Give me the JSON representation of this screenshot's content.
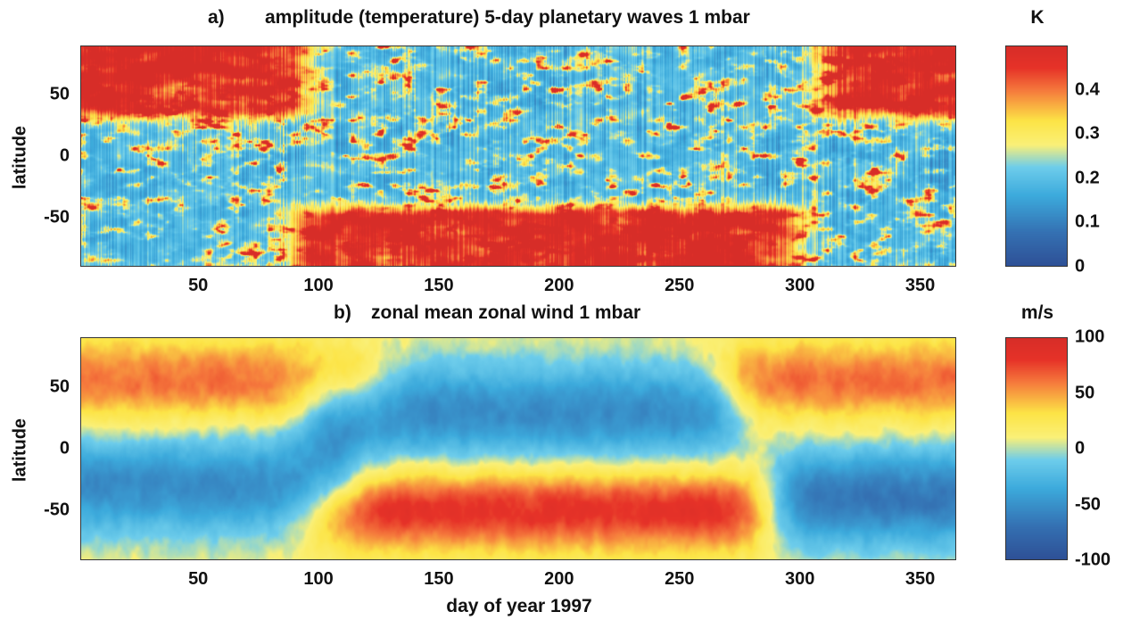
{
  "chart_data": [
    {
      "type": "heatmap",
      "label": "a)",
      "title": "amplitude (temperature) 5-day planetary waves  1 mbar",
      "ylabel": "latitude",
      "xlabel": "",
      "xlim": [
        1,
        365
      ],
      "ylim": [
        -90,
        90
      ],
      "xticks": [
        50,
        100,
        150,
        200,
        250,
        300,
        350
      ],
      "yticks": [
        50,
        0,
        -50
      ],
      "colorbar": {
        "unit": "K",
        "range": [
          0,
          0.5
        ],
        "ticks": [
          "0.4",
          "0.3",
          "0.2",
          "0.1",
          "0"
        ],
        "tick_values": [
          0.4,
          0.3,
          0.2,
          0.1,
          0
        ]
      },
      "regions_high_amplitude": [
        {
          "day_range": [
            5,
            85
          ],
          "lat_range": [
            40,
            90
          ],
          "value": 0.45
        },
        {
          "day_range": [
            320,
            365
          ],
          "lat_range": [
            40,
            90
          ],
          "value": 0.45
        },
        {
          "day_range": [
            100,
            290
          ],
          "lat_range": [
            -90,
            -50
          ],
          "value": 0.45
        }
      ]
    },
    {
      "type": "heatmap",
      "label": "b)",
      "title": "zonal mean zonal wind   1 mbar",
      "ylabel": "latitude",
      "xlabel": "day of year 1997",
      "xlim": [
        1,
        365
      ],
      "ylim": [
        -90,
        90
      ],
      "xticks": [
        50,
        100,
        150,
        200,
        250,
        300,
        350
      ],
      "yticks": [
        50,
        0,
        -50
      ],
      "colorbar": {
        "unit": "m/s",
        "range": [
          -100,
          100
        ],
        "ticks": [
          "100",
          "50",
          "0",
          "-50",
          "-100"
        ],
        "tick_values": [
          100,
          50,
          0,
          -50,
          -100
        ]
      },
      "features": [
        {
          "name": "NH winter westerly jet",
          "day_range": [
            1,
            110
          ],
          "lat_center": 55,
          "value": 60
        },
        {
          "name": "NH winter westerly jet",
          "day_range": [
            280,
            365
          ],
          "lat_center": 55,
          "value": 60
        },
        {
          "name": "SH winter westerly jet",
          "day_range": [
            110,
            270
          ],
          "lat_center": -50,
          "value": 80
        },
        {
          "name": "NH summer easterlies",
          "day_range": [
            110,
            260
          ],
          "lat_center": 30,
          "value": -40
        },
        {
          "name": "SH summer easterlies",
          "day_range": [
            1,
            100
          ],
          "lat_center": -30,
          "value": -40
        },
        {
          "name": "SH summer easterlies",
          "day_range": [
            305,
            365
          ],
          "lat_center": -40,
          "value": -50
        }
      ]
    }
  ]
}
